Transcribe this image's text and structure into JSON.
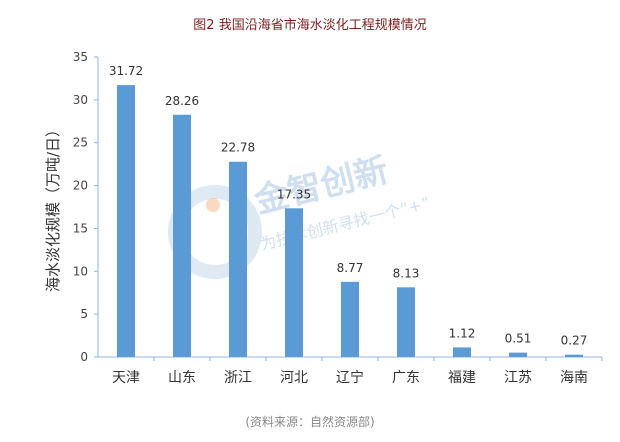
{
  "chart_data": {
    "type": "bar",
    "title": "图2 我国沿海省市海水淡化工程规模情况",
    "xlabel": "",
    "ylabel": "海水淡化规模（万吨/日）",
    "categories": [
      "天津",
      "山东",
      "浙江",
      "河北",
      "辽宁",
      "广东",
      "福建",
      "江苏",
      "海南"
    ],
    "values": [
      31.72,
      28.26,
      22.78,
      17.35,
      8.77,
      8.13,
      1.12,
      0.51,
      0.27
    ],
    "data_labels": [
      "31.72",
      "28.26",
      "22.78",
      "17.35",
      "8.77",
      "8.13",
      "1.12",
      "0.51",
      "0.27"
    ],
    "ylim": [
      0,
      35
    ],
    "yticks": [
      0,
      5,
      10,
      15,
      20,
      25,
      30,
      35
    ],
    "grid": false,
    "legend": "none",
    "bar_color": "#5b9bd5",
    "axis_color": "#8eb4e3"
  },
  "source": "(资料来源：自然资源部)",
  "watermark": {
    "brand": "金智创新",
    "slogan": "为技术创新寻找一个“+”"
  }
}
